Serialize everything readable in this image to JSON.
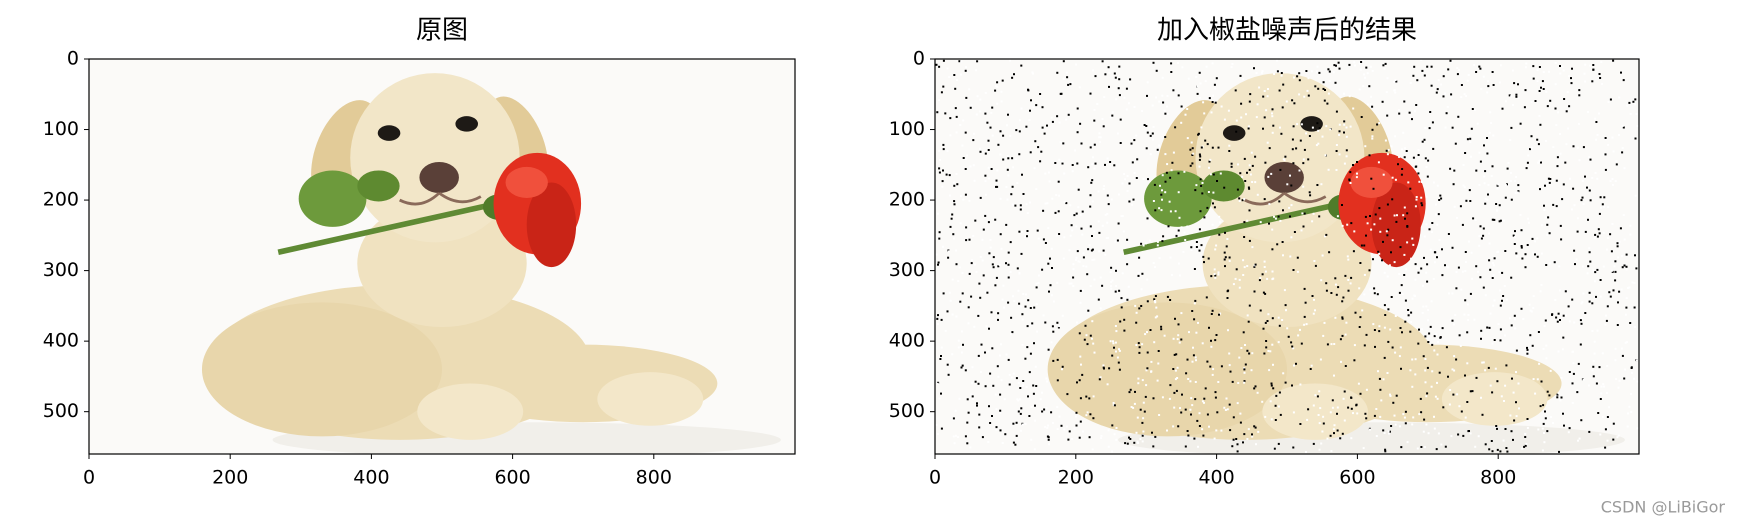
{
  "chart_data": [
    {
      "type": "image",
      "title": "原图",
      "xlim": [
        0,
        1000
      ],
      "ylim": [
        560,
        0
      ],
      "xticks": [
        0,
        200,
        400,
        600,
        800
      ],
      "yticks": [
        0,
        100,
        200,
        300,
        400,
        500
      ]
    },
    {
      "type": "image",
      "title": "加入椒盐噪声后的结果",
      "xlim": [
        0,
        1000
      ],
      "ylim": [
        560,
        0
      ],
      "xticks": [
        0,
        200,
        400,
        600,
        800
      ],
      "yticks": [
        0,
        100,
        200,
        300,
        400,
        500
      ]
    }
  ],
  "watermark": "CSDN @LiBiGor"
}
